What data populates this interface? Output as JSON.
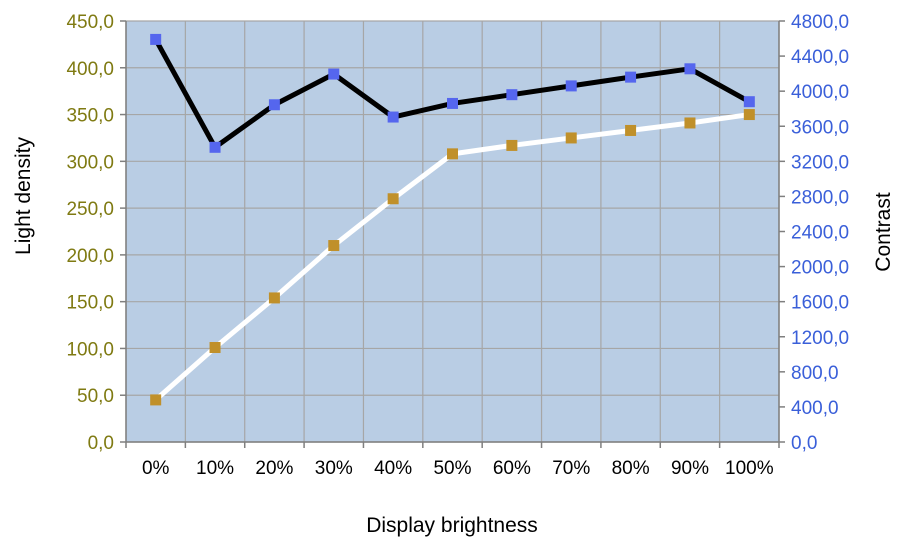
{
  "chart_data": {
    "type": "line",
    "categories": [
      "0%",
      "10%",
      "20%",
      "30%",
      "40%",
      "50%",
      "60%",
      "70%",
      "80%",
      "90%",
      "100%"
    ],
    "xlabel": "Display brightness",
    "ylabel_left": "Light density",
    "ylabel_right": "Contrast",
    "y_left": {
      "ylim": [
        0,
        450
      ],
      "ticks": [
        0,
        50,
        100,
        150,
        200,
        250,
        300,
        350,
        400,
        450
      ],
      "tick_labels": [
        "0,0",
        "50,0",
        "100,0",
        "150,0",
        "200,0",
        "250,0",
        "300,0",
        "350,0",
        "400,0",
        "450,0"
      ],
      "label_color": "#7f7a12"
    },
    "y_right": {
      "ylim": [
        0,
        4800
      ],
      "ticks": [
        0,
        400,
        800,
        1200,
        1600,
        2000,
        2400,
        2800,
        3200,
        3600,
        4000,
        4400,
        4800
      ],
      "tick_labels": [
        "0,0",
        "400,0",
        "800,0",
        "1200,0",
        "1600,0",
        "2000,0",
        "2400,0",
        "2800,0",
        "3200,0",
        "3600,0",
        "4000,0",
        "4400,0",
        "4800,0"
      ],
      "label_color": "#3a5fd9"
    },
    "series": [
      {
        "axis": "left",
        "values": [
          45,
          101,
          154,
          210,
          260,
          308,
          317,
          325,
          333,
          341,
          350
        ],
        "line_color": "#ffffff",
        "marker_color": "#c0902a"
      },
      {
        "axis": "right",
        "values": [
          4590,
          3360,
          3845,
          4195,
          3705,
          3860,
          3960,
          4060,
          4160,
          4255,
          3880
        ],
        "line_color": "#000000",
        "marker_color": "#5566ee"
      }
    ],
    "grid": true,
    "plot_background": "#b9cde4",
    "grid_color": "#a6a6a6"
  }
}
